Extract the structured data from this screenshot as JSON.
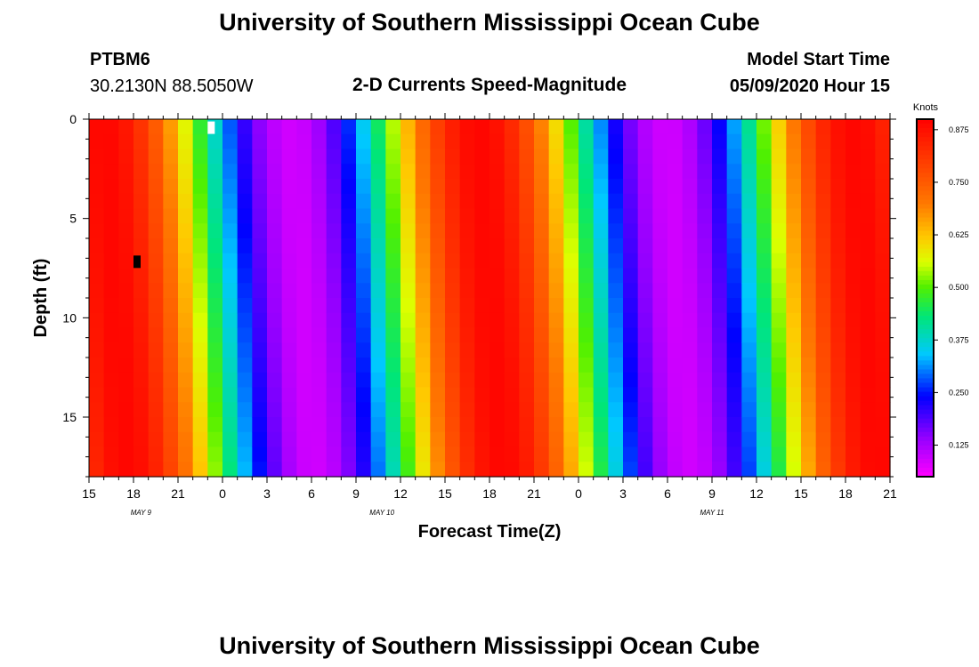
{
  "page": {
    "title_top": "University of Southern Mississippi Ocean Cube",
    "title_bottom": "University of Southern Mississippi Ocean Cube"
  },
  "header": {
    "station_id": "PTBM6",
    "station_coords": "30.2130N 88.5050W",
    "plot_title": "2-D Currents Speed-Magnitude",
    "model_start_label": "Model Start Time",
    "model_start_value": "05/09/2020 Hour 15"
  },
  "chart_data": {
    "type": "heatmap",
    "title": "2-D Currents Speed-Magnitude",
    "xlabel": "Forecast Time(Z)",
    "ylabel": "Depth (ft)",
    "x_ticks": [
      "15",
      "18",
      "21",
      "0",
      "3",
      "6",
      "9",
      "12",
      "15",
      "18",
      "21",
      "0",
      "3",
      "6",
      "9",
      "12",
      "15",
      "18",
      "21"
    ],
    "date_labels": [
      {
        "text": "MAY 9",
        "at_hour": 3.5
      },
      {
        "text": "MAY 10",
        "at_hour": 19.75
      },
      {
        "text": "MAY 11",
        "at_hour": 42
      }
    ],
    "x_range_hours": [
      0,
      54
    ],
    "y_ticks": [
      0,
      5,
      10,
      15
    ],
    "y_range_ft": [
      0,
      18
    ],
    "colorbar": {
      "unit": "Knots",
      "ticks": [
        "0.875",
        "0.750",
        "0.625",
        "0.500",
        "0.375",
        "0.250",
        "0.125"
      ],
      "tick_values": [
        0.875,
        0.75,
        0.625,
        0.5,
        0.375,
        0.25,
        0.125
      ],
      "range": [
        0.05,
        0.9
      ]
    },
    "grid": {
      "cols": 54,
      "rows": 24,
      "hour_step": 1,
      "depth_step_ft": 0.75,
      "phase_start_hour": 1,
      "period_hours": 25.3,
      "mean_speed_knots": 0.49,
      "amplitude_knots": 0.4,
      "depth_phase_hours": 1.6
    },
    "blank_cells": [
      {
        "hour": 8,
        "depth_ft": 0.25,
        "color": "#ffffff"
      },
      {
        "hour": 3,
        "depth_ft": 7,
        "color": "#000000"
      }
    ]
  },
  "colors": {
    "background": "#ffffff",
    "text": "#000000"
  }
}
